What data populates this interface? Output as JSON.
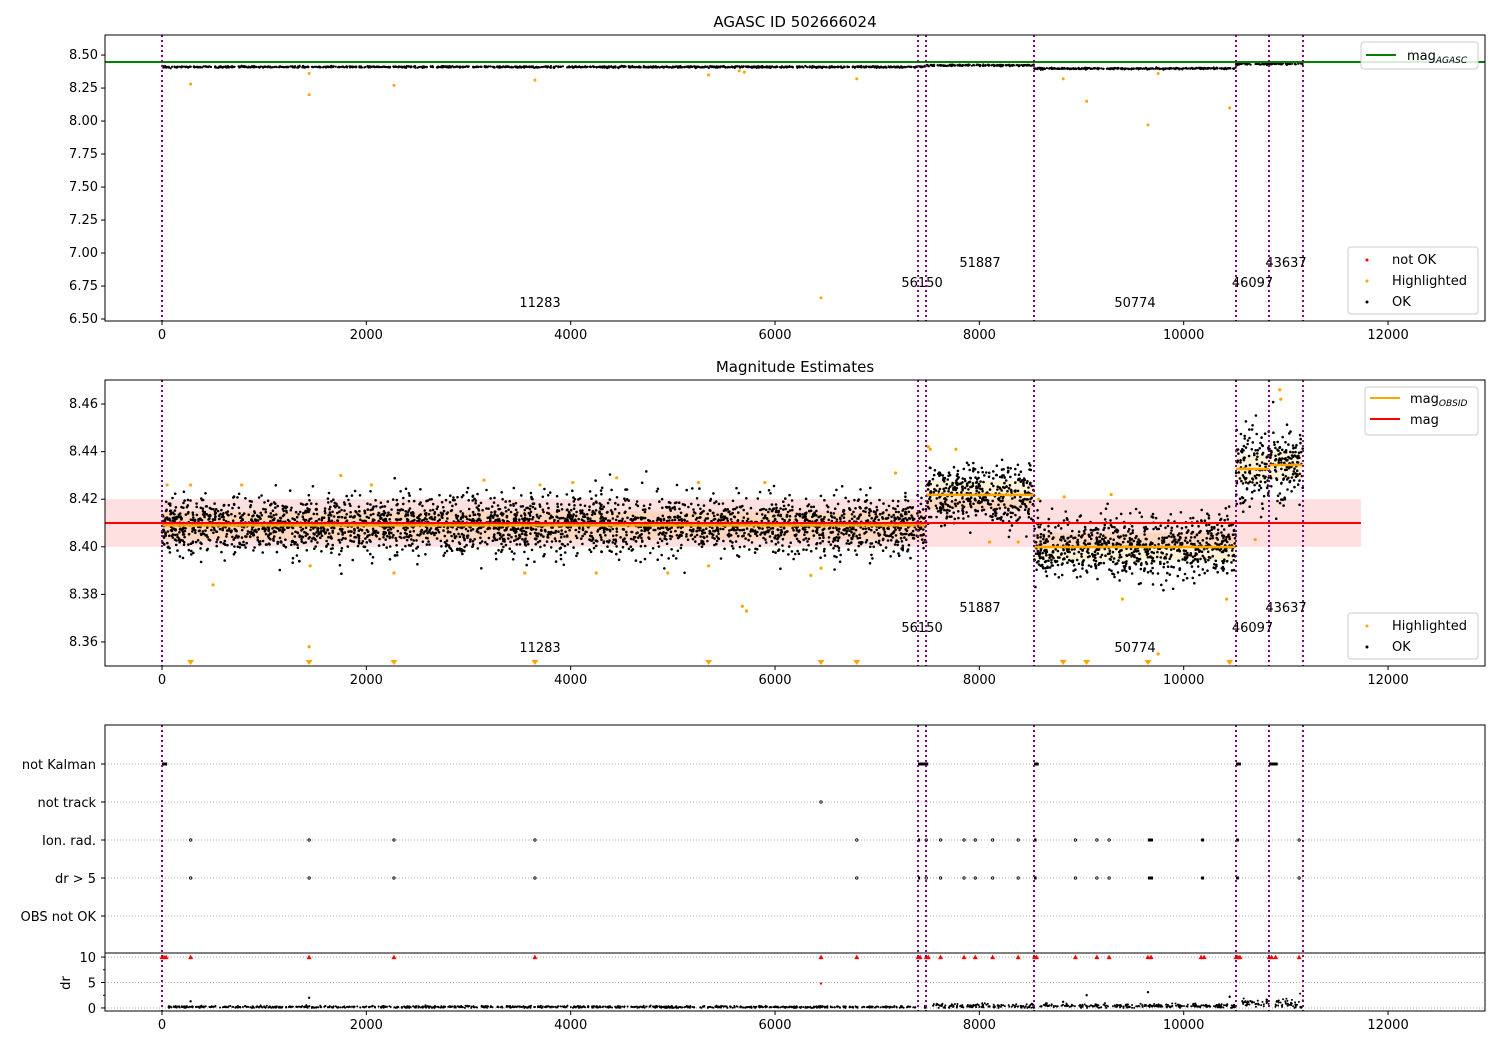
{
  "colors": {
    "ok": "#000000",
    "not_ok": "#ff0000",
    "highlighted": "#ffa500",
    "agasc": "#008000",
    "mag": "#ff0000",
    "mag_obsid": "#ffa500",
    "obs_boundary": "#800080"
  },
  "chart_data": [
    {
      "type": "scatter",
      "title": "AGASC ID 502666024",
      "xlim": [
        -558,
        12949
      ],
      "ylim": [
        6.485,
        8.652
      ],
      "xticks": [
        0,
        2000,
        4000,
        6000,
        8000,
        10000,
        12000
      ],
      "yticks": [
        "6.50",
        "6.75",
        "7.00",
        "7.25",
        "7.50",
        "7.75",
        "8.00",
        "8.25",
        "8.50"
      ],
      "mag_agasc": 8.447,
      "legend_line": {
        "label": "mag",
        "subscript": "AGASC",
        "placement": "top-right"
      },
      "legend_points": {
        "items": [
          "not OK",
          "Highlighted",
          "OK"
        ],
        "placement": "lower-right"
      },
      "segments": [
        {
          "obsid": "11283",
          "x0": 0,
          "x1": 7400,
          "mean": 8.41,
          "sd": 0.003
        },
        {
          "obsid": "56150",
          "x0": 7400,
          "x1": 7478,
          "mean": 8.412,
          "sd": 0.003
        },
        {
          "obsid": "51887",
          "x0": 7478,
          "x1": 8535,
          "mean": 8.422,
          "sd": 0.003
        },
        {
          "obsid": "50774",
          "x0": 8535,
          "x1": 10512,
          "mean": 8.398,
          "sd": 0.003
        },
        {
          "obsid": "46097",
          "x0": 10512,
          "x1": 10835,
          "mean": 8.433,
          "sd": 0.004
        },
        {
          "obsid": "43637",
          "x0": 10835,
          "x1": 11168,
          "mean": 8.434,
          "sd": 0.004
        }
      ],
      "highlighted": [
        [
          280,
          8.28
        ],
        [
          1440,
          8.2
        ],
        [
          1440,
          8.36
        ],
        [
          2270,
          8.27
        ],
        [
          3650,
          8.31
        ],
        [
          5350,
          8.35
        ],
        [
          5650,
          8.38
        ],
        [
          5700,
          8.37
        ],
        [
          6450,
          6.66
        ],
        [
          6800,
          8.32
        ],
        [
          8820,
          8.32
        ],
        [
          9050,
          8.15
        ],
        [
          9650,
          7.97
        ],
        [
          9750,
          8.36
        ],
        [
          10450,
          8.1
        ]
      ]
    },
    {
      "type": "scatter",
      "title": "Magnitude Estimates",
      "xlim": [
        -558,
        12949
      ],
      "ylim": [
        8.3499,
        8.4701
      ],
      "xticks": [
        0,
        2000,
        4000,
        6000,
        8000,
        10000,
        12000
      ],
      "yticks": [
        "8.36",
        "8.38",
        "8.40",
        "8.42",
        "8.44",
        "8.46"
      ],
      "mag": 8.41,
      "mag_band": [
        8.4,
        8.42
      ],
      "mag_line_x": [
        -558,
        11735
      ],
      "legend_lines": {
        "items": [
          {
            "label": "mag",
            "subscript": "OBSID"
          },
          {
            "label": "mag",
            "subscript": ""
          }
        ],
        "placement": "top-right"
      },
      "legend_points": {
        "items": [
          "Highlighted",
          "OK"
        ],
        "placement": "lower-right"
      },
      "segments": [
        {
          "obsid": "11283",
          "x0": 0,
          "x1": 7400,
          "mag_obsid": 8.409,
          "sd": 0.006
        },
        {
          "obsid": "56150",
          "x0": 7400,
          "x1": 7478,
          "mag_obsid": 8.409,
          "sd": 0.006
        },
        {
          "obsid": "51887",
          "x0": 7478,
          "x1": 8535,
          "mag_obsid": 8.4218,
          "sd": 0.006
        },
        {
          "obsid": "50774",
          "x0": 8535,
          "x1": 10512,
          "mag_obsid": 8.3999,
          "sd": 0.0065
        },
        {
          "obsid": "46097",
          "x0": 10512,
          "x1": 10835,
          "mag_obsid": 8.4327,
          "sd": 0.008
        },
        {
          "obsid": "43637",
          "x0": 10835,
          "x1": 11168,
          "mag_obsid": 8.4344,
          "sd": 0.008
        }
      ],
      "highlighted": [
        [
          50,
          8.426
        ],
        [
          280,
          8.426
        ],
        [
          500,
          8.384
        ],
        [
          780,
          8.426
        ],
        [
          1440,
          8.358
        ],
        [
          1450,
          8.392
        ],
        [
          1750,
          8.43
        ],
        [
          2050,
          8.426
        ],
        [
          2270,
          8.389
        ],
        [
          3150,
          8.428
        ],
        [
          3550,
          8.389
        ],
        [
          3700,
          8.426
        ],
        [
          4020,
          8.427
        ],
        [
          4250,
          8.389
        ],
        [
          4450,
          8.429
        ],
        [
          4950,
          8.389
        ],
        [
          5250,
          8.427
        ],
        [
          5350,
          8.392
        ],
        [
          5680,
          8.375
        ],
        [
          5720,
          8.373
        ],
        [
          5900,
          8.427
        ],
        [
          6350,
          8.388
        ],
        [
          6450,
          8.391
        ],
        [
          7180,
          8.431
        ],
        [
          7500,
          8.442
        ],
        [
          7520,
          8.441
        ],
        [
          7770,
          8.441
        ],
        [
          8100,
          8.402
        ],
        [
          8380,
          8.402
        ],
        [
          8580,
          8.42
        ],
        [
          8830,
          8.421
        ],
        [
          9290,
          8.422
        ],
        [
          9400,
          8.378
        ],
        [
          9750,
          8.355
        ],
        [
          10420,
          8.378
        ],
        [
          10700,
          8.403
        ],
        [
          10940,
          8.466
        ],
        [
          10950,
          8.462
        ]
      ],
      "below_range_markers_x": [
        280,
        1440,
        2270,
        3650,
        5350,
        6450,
        6800,
        8820,
        9050,
        9650,
        10450
      ]
    },
    {
      "type": "scatter",
      "xlim": [
        -558,
        12949
      ],
      "xticks": [
        0,
        2000,
        4000,
        6000,
        8000,
        10000,
        12000
      ],
      "flag_rows": [
        "not Kalman",
        "not track",
        "Ion. rad.",
        "dr > 5",
        "OBS not OK"
      ],
      "flags": {
        "not Kalman": [
          [
            0,
            50
          ],
          [
            7400,
            7500
          ],
          [
            8535,
            8580
          ],
          [
            10512,
            10560
          ],
          [
            10835,
            10920
          ]
        ],
        "not track": [
          [
            6450,
            6450
          ]
        ],
        "Ion. rad.": [
          [
            280,
            280
          ],
          [
            1440,
            1440
          ],
          [
            2270,
            2270
          ],
          [
            3650,
            3650
          ],
          [
            6800,
            6800
          ],
          [
            7400,
            7420
          ],
          [
            7480,
            7480
          ],
          [
            7620,
            7620
          ],
          [
            7850,
            7850
          ],
          [
            7960,
            7960
          ],
          [
            8130,
            8130
          ],
          [
            8380,
            8380
          ],
          [
            8535,
            8560
          ],
          [
            8940,
            8940
          ],
          [
            9150,
            9150
          ],
          [
            9270,
            9270
          ],
          [
            9650,
            9700
          ],
          [
            10170,
            10200
          ],
          [
            10512,
            10540
          ],
          [
            11130,
            11130
          ]
        ],
        "dr > 5": [
          [
            280,
            280
          ],
          [
            1440,
            1440
          ],
          [
            2270,
            2270
          ],
          [
            3650,
            3650
          ],
          [
            6800,
            6800
          ],
          [
            7400,
            7420
          ],
          [
            7480,
            7480
          ],
          [
            7620,
            7620
          ],
          [
            7850,
            7850
          ],
          [
            7960,
            7960
          ],
          [
            8130,
            8130
          ],
          [
            8380,
            8380
          ],
          [
            8535,
            8560
          ],
          [
            8940,
            8940
          ],
          [
            9150,
            9150
          ],
          [
            9270,
            9270
          ],
          [
            9650,
            9700
          ],
          [
            10170,
            10200
          ],
          [
            10512,
            10540
          ],
          [
            11130,
            11130
          ]
        ],
        "OBS not OK": []
      },
      "dr_ylabel": "dr",
      "dr_ylim": [
        -0.6,
        10.8
      ],
      "dr_yticks": [
        "0",
        "5",
        "10"
      ],
      "dr_notok_x": [
        0,
        20,
        40,
        280,
        1440,
        2270,
        3650,
        6450,
        6800,
        7400,
        7420,
        7480,
        7500,
        7620,
        7850,
        7960,
        8130,
        8380,
        8540,
        8560,
        8940,
        9150,
        9270,
        9650,
        9680,
        10170,
        10200,
        10512,
        10530,
        10550,
        10835,
        10860,
        10900,
        11130
      ],
      "dr_outliers": [
        [
          280,
          1.3
        ],
        [
          1440,
          2.0
        ],
        [
          6450,
          4.8
        ],
        [
          8820,
          1.2
        ],
        [
          9050,
          2.5
        ],
        [
          9650,
          3.1
        ],
        [
          10450,
          2.2
        ]
      ]
    }
  ],
  "obs_boundaries": [
    0,
    7400,
    7478,
    8535,
    10512,
    10835,
    11168
  ]
}
